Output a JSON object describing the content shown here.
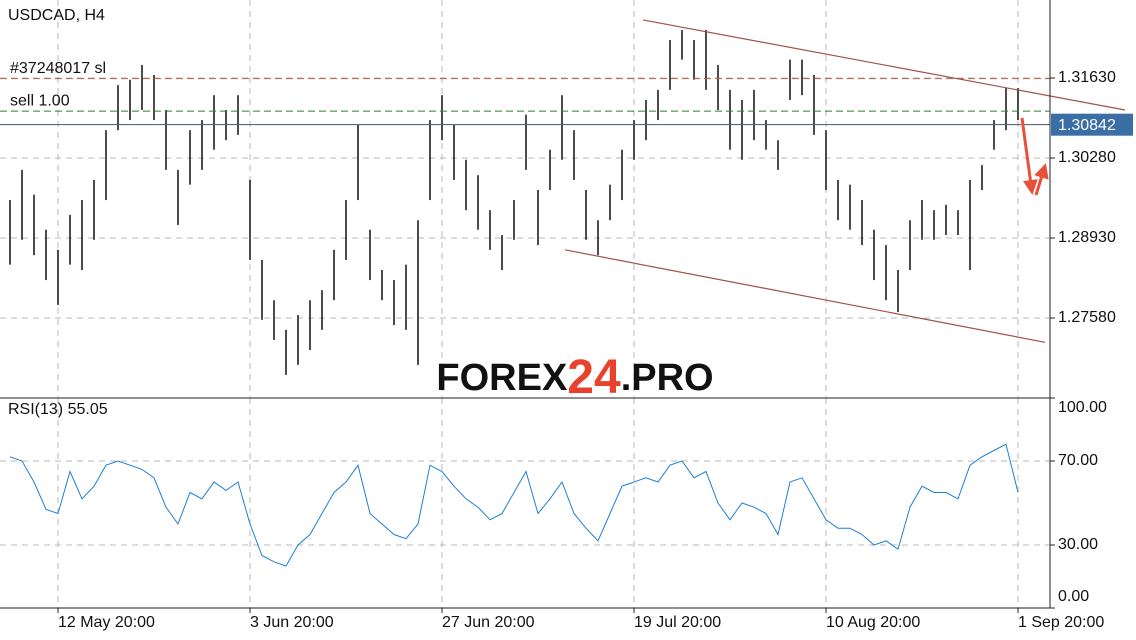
{
  "chart_data": [
    {
      "type": "ohlc",
      "title": "USDCAD, H4",
      "color": "#111111",
      "high": [
        1.2957,
        1.3008,
        1.2966,
        1.2907,
        1.2873,
        1.2932,
        1.2957,
        1.2991,
        1.3075,
        1.3151,
        1.316,
        1.3185,
        1.3168,
        1.3109,
        1.3008,
        1.3075,
        1.3092,
        1.3134,
        1.3109,
        1.3134,
        1.2991,
        1.2856,
        1.2788,
        1.2738,
        1.2763,
        1.2788,
        1.2805,
        1.2873,
        1.2957,
        1.3084,
        1.2907,
        1.2839,
        1.2822,
        1.2848,
        1.2923,
        1.3092,
        1.3134,
        1.3084,
        1.3025,
        1.2999,
        1.294,
        1.2898,
        1.2957,
        1.3101,
        1.2974,
        1.3042,
        1.3134,
        1.3075,
        1.2974,
        1.2923,
        1.2983,
        1.3042,
        1.3092,
        1.3126,
        1.3143,
        1.3227,
        1.3244,
        1.3227,
        1.3244,
        1.3185,
        1.3143,
        1.3126,
        1.3143,
        1.3092,
        1.3058,
        1.3194,
        1.3194,
        1.3168,
        1.3075,
        1.2991,
        1.2983,
        1.2957,
        1.2907,
        1.2881,
        1.2839,
        1.2923,
        1.2957,
        1.294,
        1.2949,
        1.294,
        1.2991,
        1.3016,
        1.3092,
        1.3146,
        1.3146
      ],
      "low": [
        1.2848,
        1.289,
        1.2864,
        1.2822,
        1.278,
        1.2848,
        1.2839,
        1.289,
        1.2957,
        1.3075,
        1.3092,
        1.3109,
        1.3092,
        1.3008,
        1.2915,
        1.2983,
        1.3008,
        1.3042,
        1.3058,
        1.3067,
        1.2856,
        1.2755,
        1.2721,
        1.2662,
        1.2679,
        1.2704,
        1.2738,
        1.2788,
        1.2856,
        1.2957,
        1.2822,
        1.2788,
        1.2746,
        1.2738,
        1.2679,
        1.2957,
        1.3058,
        1.2991,
        1.294,
        1.2907,
        1.2873,
        1.2839,
        1.289,
        1.3008,
        1.2881,
        1.2974,
        1.3025,
        1.2991,
        1.289,
        1.2864,
        1.2923,
        1.2957,
        1.3025,
        1.3058,
        1.3092,
        1.3143,
        1.3194,
        1.316,
        1.3143,
        1.3109,
        1.3042,
        1.3025,
        1.3058,
        1.3042,
        1.3008,
        1.3126,
        1.3134,
        1.3067,
        1.2974,
        1.2923,
        1.2907,
        1.2881,
        1.2822,
        1.2788,
        1.2768,
        1.2839,
        1.289,
        1.289,
        1.2898,
        1.2898,
        1.2839,
        1.2974,
        1.3042,
        1.3075,
        1.3092
      ],
      "xlim": [
        -0.8333,
        86.6667
      ],
      "ylim": [
        1.2623,
        1.32946
      ],
      "xticks": [
        {
          "value": 4,
          "label": "12 May 20:00"
        },
        {
          "value": 20,
          "label": "3 Jun 20:00"
        },
        {
          "value": 36,
          "label": "27 Jun 20:00"
        },
        {
          "value": 52,
          "label": "19 Jul 20:00"
        },
        {
          "value": 68,
          "label": "10 Aug 20:00"
        },
        {
          "value": 84,
          "label": "1 Sep 20:00"
        }
      ],
      "yticks": [
        {
          "value": 1.2758,
          "label": "1.27580"
        },
        {
          "value": 1.2893,
          "label": "1.28930"
        },
        {
          "value": 1.3028,
          "label": "1.30280"
        },
        {
          "value": 1.3163,
          "label": "1.31630"
        }
      ],
      "grid": true,
      "last_price": {
        "value": 1.30842,
        "label": "1.30842",
        "color": "#3a6ea5"
      },
      "levels": [
        {
          "label": "#37248017 sl",
          "value": 1.3162,
          "color": "#b5654f"
        },
        {
          "label": "sell 1.00",
          "value": 1.3107,
          "color": "#2e7d32"
        }
      ],
      "channel": [
        {
          "x": [
            52.75,
            92.92
          ],
          "y": [
            1.3261,
            1.3109
          ]
        },
        {
          "x": [
            46.25,
            86.25
          ],
          "y": [
            1.2873,
            1.2717
          ]
        }
      ],
      "channel_color": "#a0524a",
      "watermark": [
        "FOREX",
        "24",
        ".PRO"
      ]
    },
    {
      "type": "line",
      "title": "RSI(13) 55.05",
      "color": "#1f7fd6",
      "values": [
        72,
        70,
        60,
        47,
        45,
        65,
        52,
        58,
        68,
        70,
        68,
        66,
        62,
        48,
        40,
        55,
        52,
        60,
        56,
        60,
        40,
        25,
        22,
        20,
        30,
        35,
        45,
        55,
        60,
        68,
        45,
        40,
        35,
        33,
        40,
        68,
        65,
        58,
        52,
        48,
        42,
        45,
        55,
        65,
        45,
        52,
        60,
        45,
        38,
        32,
        45,
        58,
        60,
        62,
        60,
        68,
        70,
        62,
        65,
        50,
        42,
        50,
        48,
        45,
        35,
        60,
        62,
        52,
        42,
        38,
        38,
        35,
        30,
        32,
        28,
        48,
        58,
        55,
        55,
        52,
        68,
        72,
        75,
        78,
        55.05
      ],
      "xlim": [
        -0.8333,
        86.6667
      ],
      "ylim": [
        0,
        100
      ],
      "yticks": [
        {
          "value": 0,
          "label": "0.00"
        },
        {
          "value": 30,
          "label": "30.00"
        },
        {
          "value": 70,
          "label": "70.00"
        },
        {
          "value": 100,
          "label": "100.00"
        }
      ],
      "grid": true
    }
  ]
}
